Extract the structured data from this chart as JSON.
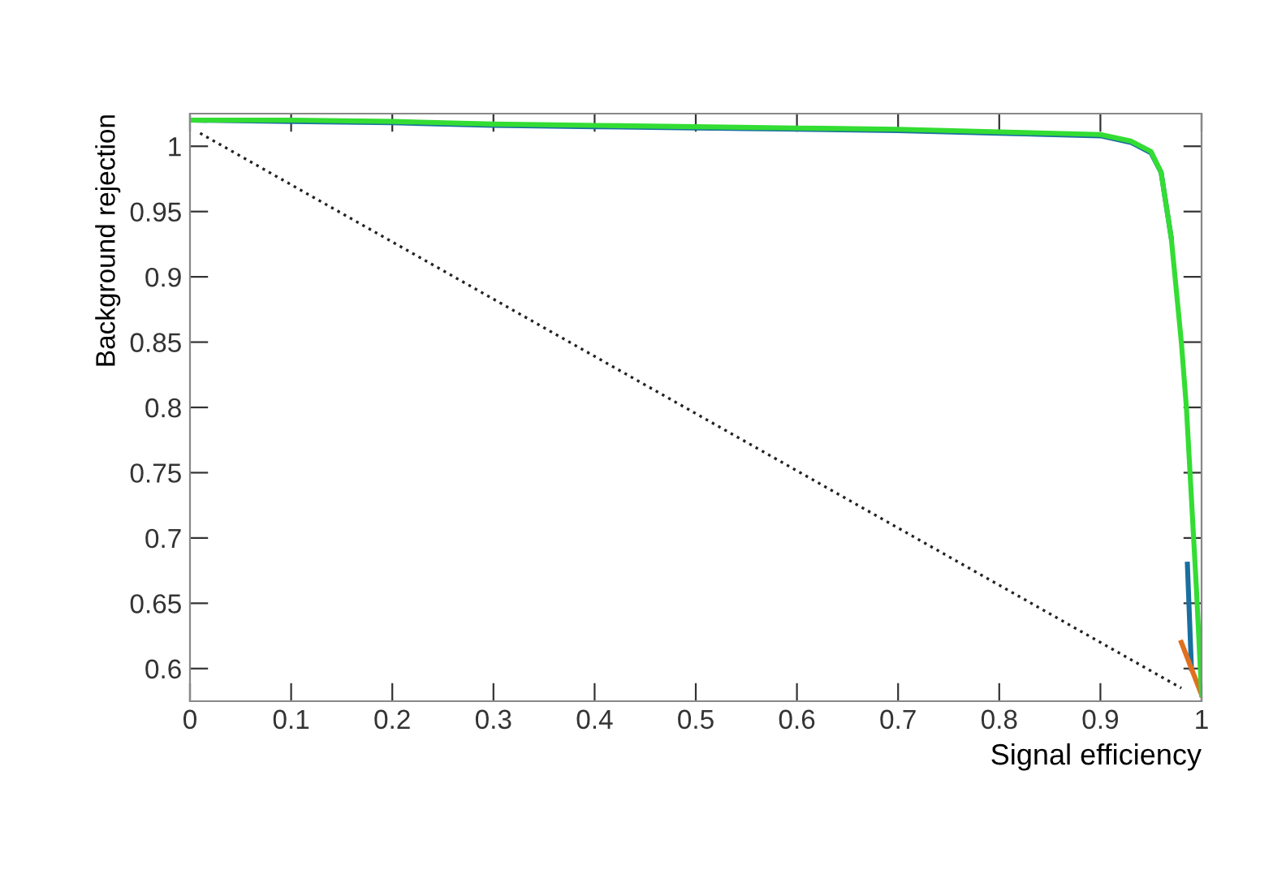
{
  "chart_data": {
    "type": "line",
    "xlabel": "Signal efficiency",
    "ylabel": "Background rejection",
    "xlim": [
      0,
      1
    ],
    "ylim": [
      0.575,
      1.025
    ],
    "xticks": [
      0,
      0.1,
      0.2,
      0.3,
      0.4,
      0.5,
      0.6,
      0.7,
      0.8,
      0.9,
      1
    ],
    "yticks": [
      0.6,
      0.65,
      0.7,
      0.75,
      0.8,
      0.85,
      0.9,
      0.95,
      1
    ],
    "grid": false,
    "legend": false,
    "marker": "none",
    "series": [
      {
        "color": "#1a6fa0",
        "line_style": "solid",
        "x": [
          0,
          0.1,
          0.2,
          0.3,
          0.4,
          0.5,
          0.6,
          0.7,
          0.8,
          0.9,
          0.93,
          0.95,
          0.96,
          0.97,
          0.98,
          0.986,
          0.988,
          0.99
        ],
        "values": [
          1.02,
          1.019,
          1.018,
          1.016,
          1.015,
          1.014,
          1.013,
          1.012,
          1.01,
          1.008,
          1.003,
          0.995,
          0.98,
          0.93,
          null,
          0.68,
          0.64,
          0.6
        ]
      },
      {
        "color": "#e07020",
        "line_style": "solid",
        "x": [
          0.98,
          0.985,
          0.99,
          0.995,
          1
        ],
        "values": [
          0.62,
          0.61,
          0.6,
          0.59,
          0.58
        ]
      },
      {
        "color": "#33dd33",
        "line_style": "solid",
        "x": [
          0,
          0.1,
          0.2,
          0.3,
          0.4,
          0.5,
          0.6,
          0.7,
          0.8,
          0.9,
          0.93,
          0.95,
          0.96,
          0.97,
          0.98,
          0.985,
          0.99,
          0.995,
          1
        ],
        "values": [
          1.02,
          1.02,
          1.019,
          1.017,
          1.016,
          1.015,
          1.014,
          1.013,
          1.011,
          1.009,
          1.004,
          0.996,
          0.98,
          0.93,
          0.85,
          0.8,
          0.73,
          0.66,
          0.58
        ]
      },
      {
        "color": "#222222",
        "line_style": "dotted",
        "x": [
          0.01,
          0.98
        ],
        "values": [
          1.01,
          0.585
        ]
      }
    ]
  }
}
